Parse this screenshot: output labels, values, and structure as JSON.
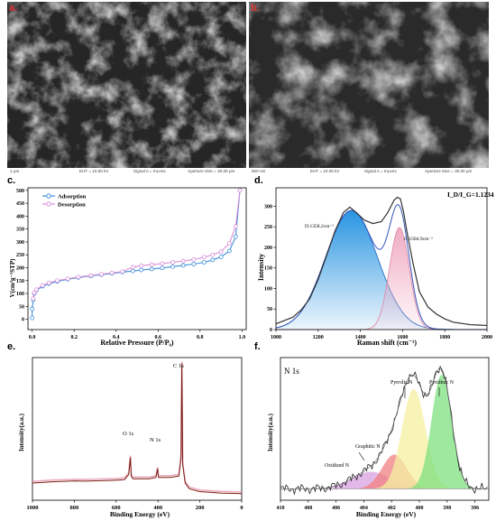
{
  "panels": {
    "a": {
      "label": "a.",
      "footer": {
        "scale": "1 μm",
        "eht": "EHT = 10.00 kV",
        "signal": "Signal A = InLens",
        "aperture": "Aperture Size = 30.00 μm"
      }
    },
    "b": {
      "label": "b.",
      "footer": {
        "scale": "500 nm",
        "eht": "EHT = 10.00 kV",
        "signal": "Signal A = InLens",
        "aperture": "Aperture Size = 30.00 μm"
      }
    },
    "c": {
      "label": "c."
    },
    "d": {
      "label": "d."
    },
    "e": {
      "label": "e."
    },
    "f": {
      "label": "f."
    }
  },
  "chart_data": [
    {
      "panel": "c",
      "type": "line",
      "xlabel": "Relative Pressure (P/P₀)",
      "ylabel": "V(cm³g⁻¹STP)",
      "xlim": [
        -0.02,
        1.02
      ],
      "ylim": [
        -40,
        510
      ],
      "xticks": [
        "0.0",
        "0.2",
        "0.4",
        "0.6",
        "0.8",
        "1.0"
      ],
      "yticks": [
        "0",
        "50",
        "100",
        "150",
        "200",
        "250",
        "300",
        "350",
        "400",
        "450",
        "500"
      ],
      "legend_position": "top-left",
      "series": [
        {
          "name": "Adsorption",
          "color": "#3d8fd9",
          "x": [
            0.0,
            0.0,
            0.005,
            0.01,
            0.02,
            0.05,
            0.08,
            0.12,
            0.17,
            0.22,
            0.28,
            0.33,
            0.38,
            0.43,
            0.48,
            0.52,
            0.57,
            0.62,
            0.67,
            0.72,
            0.77,
            0.82,
            0.86,
            0.9,
            0.94,
            0.97,
            0.99
          ],
          "y": [
            5,
            40,
            75,
            100,
            112,
            128,
            138,
            147,
            155,
            162,
            168,
            173,
            178,
            183,
            187,
            191,
            195,
            199,
            204,
            209,
            214,
            221,
            230,
            242,
            265,
            320,
            500
          ]
        },
        {
          "name": "Desorption",
          "color": "#d98fd9",
          "x": [
            0.99,
            0.97,
            0.94,
            0.9,
            0.86,
            0.82,
            0.77,
            0.72,
            0.67,
            0.62,
            0.57,
            0.52,
            0.48,
            0.43,
            0.38,
            0.33,
            0.28,
            0.22,
            0.17,
            0.12,
            0.08,
            0.05,
            0.02,
            0.01,
            0.005
          ],
          "y": [
            500,
            360,
            295,
            262,
            250,
            241,
            232,
            226,
            221,
            216,
            212,
            208,
            202,
            185,
            180,
            175,
            170,
            164,
            157,
            150,
            141,
            131,
            115,
            103,
            80
          ]
        }
      ]
    },
    {
      "panel": "d",
      "type": "line",
      "xlabel": "Raman shift (cm⁻¹)",
      "ylabel": "Intensity",
      "xlim": [
        1000,
        2000
      ],
      "ylim": [
        0,
        345
      ],
      "xticks": [
        "1000",
        "1200",
        "1400",
        "1600",
        "1800",
        "2000"
      ],
      "yticks": [
        "0",
        "50",
        "100",
        "150",
        "200",
        "250",
        "300"
      ],
      "annotations": [
        "I_D/I_G=1.1234",
        "D:1358.2cm⁻¹",
        "G:1584.9cm⁻¹"
      ],
      "series": [
        {
          "name": "D",
          "type": "area",
          "center": 1358.2,
          "fwhm": 290,
          "amplitude": 290,
          "color": "#1e8fe0"
        },
        {
          "name": "G",
          "type": "area",
          "center": 1584.9,
          "fwhm": 110,
          "amplitude": 248,
          "color": "#f0a8c0"
        },
        {
          "name": "fit",
          "color": "#3355bb"
        },
        {
          "name": "measured",
          "color": "#333333",
          "x": [
            1000,
            1040,
            1080,
            1120,
            1160,
            1200,
            1240,
            1280,
            1320,
            1350,
            1380,
            1420,
            1460,
            1500,
            1530,
            1560,
            1575,
            1590,
            1605,
            1620,
            1650,
            1680,
            1720,
            1760,
            1800,
            1840,
            1880,
            1920,
            1960,
            2000
          ],
          "y": [
            14,
            22,
            30,
            48,
            75,
            122,
            180,
            240,
            285,
            298,
            285,
            266,
            258,
            263,
            285,
            315,
            322,
            318,
            285,
            240,
            160,
            92,
            55,
            38,
            26,
            18,
            15,
            12,
            11,
            10
          ]
        }
      ]
    },
    {
      "panel": "e",
      "type": "line",
      "xlabel": "Binding Energy (eV)",
      "ylabel": "Intensity(a.u.)",
      "xlim": [
        1000,
        0
      ],
      "ylim": [
        0,
        100
      ],
      "xticks": [
        "1000",
        "800",
        "600",
        "400",
        "200",
        "0"
      ],
      "yticks": [],
      "peak_labels": [
        "O 1s",
        "N 1s",
        "C 1s"
      ],
      "series": [
        {
          "name": "survey",
          "color": "#7a1e12",
          "x": [
            1000,
            950,
            900,
            850,
            800,
            750,
            700,
            650,
            600,
            560,
            540,
            532,
            528,
            520,
            480,
            440,
            410,
            402,
            398,
            380,
            340,
            300,
            290,
            286,
            284,
            282,
            270,
            250,
            200,
            150,
            100,
            50,
            0
          ],
          "y": [
            12,
            12.5,
            13,
            13.2,
            13.5,
            13.4,
            13.6,
            13.8,
            14,
            14.5,
            18,
            30,
            17,
            15,
            15,
            15,
            16,
            22,
            16,
            16,
            16,
            17,
            30,
            96,
            60,
            25,
            12,
            8,
            6,
            5.5,
            5,
            4.8,
            4.6
          ]
        }
      ]
    },
    {
      "panel": "f",
      "type": "line",
      "title": "N 1s",
      "xlabel": "Binding Energy (eV)",
      "ylabel": "Intensity(a.u.)",
      "xlim": [
        410,
        395
      ],
      "ylim": [
        0,
        100
      ],
      "xticks": [
        "410",
        "408",
        "406",
        "404",
        "402",
        "400",
        "398",
        "396"
      ],
      "yticks": [],
      "annotations": [
        "Oxidized N",
        "Graphitic N",
        "Pyrrolic N",
        "Pyridinic N"
      ],
      "series": [
        {
          "name": "Oxidized N",
          "type": "area",
          "center": 403.5,
          "fwhm": 3.2,
          "amplitude": 12,
          "color": "#d8a0e0"
        },
        {
          "name": "Graphitic N",
          "type": "area",
          "center": 401.8,
          "fwhm": 2.1,
          "amplitude": 24,
          "color": "#f08080"
        },
        {
          "name": "Pyrrolic N",
          "type": "area",
          "center": 400.4,
          "fwhm": 2.0,
          "amplitude": 70,
          "color": "#f5f0a0"
        },
        {
          "name": "Pyridinic N",
          "type": "area",
          "center": 398.4,
          "fwhm": 1.7,
          "amplitude": 80,
          "color": "#7fe07f"
        },
        {
          "name": "measured",
          "color": "#222222"
        }
      ]
    }
  ]
}
